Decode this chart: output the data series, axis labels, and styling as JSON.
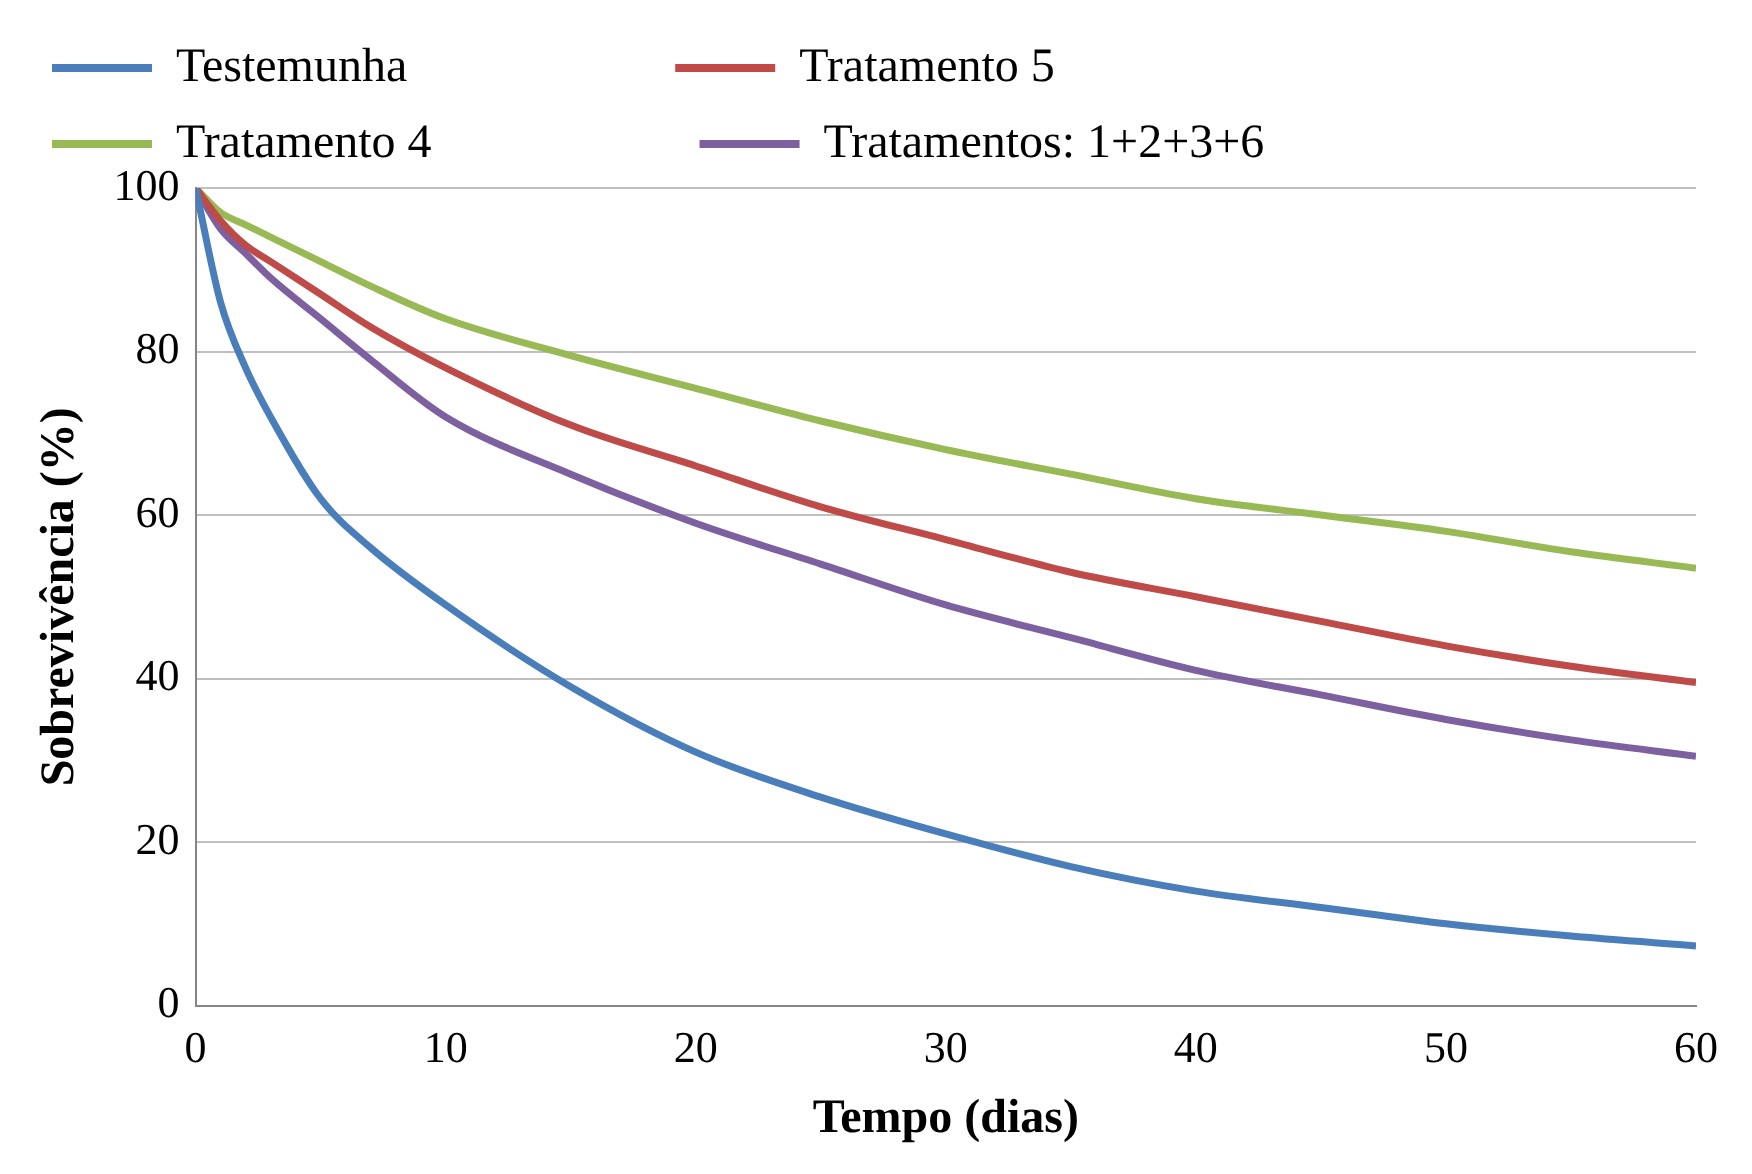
{
  "chart_data": {
    "type": "line",
    "xlabel": "Tempo (dias)",
    "ylabel": "Sobrevivência (%)",
    "x": [
      0,
      1,
      2,
      3,
      5,
      7,
      10,
      15,
      20,
      25,
      30,
      35,
      40,
      45,
      50,
      55,
      60
    ],
    "series": [
      {
        "name": "Testemunha",
        "color": "#4a7ebb",
        "values": [
          100,
          86,
          78,
          72,
          62,
          56,
          49,
          39,
          31,
          25.5,
          21,
          17,
          14,
          12,
          10,
          8.5,
          7.3
        ]
      },
      {
        "name": "Tratamento 5",
        "color": "#be4b48",
        "values": [
          100,
          96,
          93,
          91,
          87,
          83,
          78,
          71,
          66,
          61,
          57,
          53,
          50,
          47,
          44,
          41.5,
          39.5
        ]
      },
      {
        "name": "Tratamento 4",
        "color": "#98b954",
        "values": [
          100,
          97,
          95.5,
          94,
          91,
          88,
          84,
          79.5,
          75.5,
          71.5,
          68,
          65,
          62,
          60,
          58,
          55.5,
          53.5
        ]
      },
      {
        "name": "Tratamentos: 1+2+3+6",
        "color": "#7d60a0",
        "values": [
          100,
          95,
          92,
          89,
          84,
          79,
          72,
          65,
          59,
          54,
          49,
          45,
          41,
          38,
          35,
          32.5,
          30.5
        ]
      }
    ],
    "xlim": [
      0,
      60
    ],
    "xticks": [
      0,
      10,
      20,
      30,
      40,
      50,
      60
    ],
    "ylim": [
      0,
      100
    ],
    "yticks": [
      0,
      20,
      40,
      60,
      80,
      100
    ],
    "grid": "y",
    "legend": "top",
    "marker": "none",
    "line_style": "solid"
  }
}
